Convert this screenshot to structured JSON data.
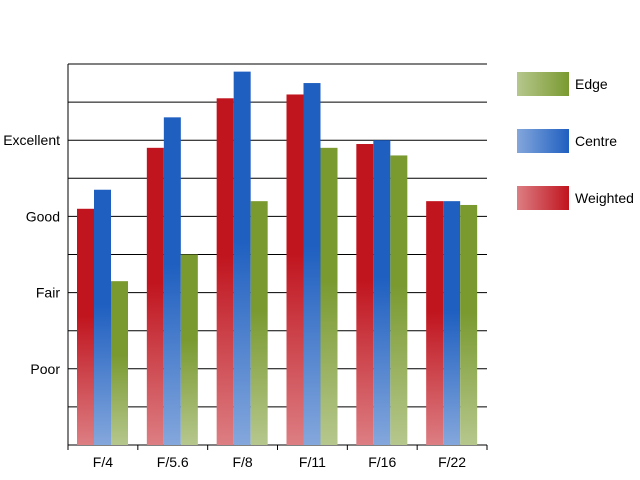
{
  "chart_data": {
    "type": "bar",
    "title": "",
    "xlabel": "",
    "ylabel": "",
    "categories": [
      "F/4",
      "F/5.6",
      "F/8",
      "F/11",
      "F/16",
      "F/22"
    ],
    "series": [
      {
        "name": "Weighted",
        "color": "#c0141e",
        "values": [
          6.2,
          7.8,
          9.1,
          9.2,
          7.9,
          6.4
        ]
      },
      {
        "name": "Centre",
        "color": "#1f5fc0",
        "values": [
          6.7,
          8.6,
          9.8,
          9.5,
          8.0,
          6.4
        ]
      },
      {
        "name": "Edge",
        "color": "#7a9a30",
        "values": [
          4.3,
          5.0,
          6.4,
          7.8,
          7.6,
          6.3
        ]
      }
    ],
    "legend_order": [
      "Edge",
      "Centre",
      "Weighted"
    ],
    "y_tick_labels": [
      {
        "label": "Poor",
        "value": 2
      },
      {
        "label": "Fair",
        "value": 4
      },
      {
        "label": "Good",
        "value": 6
      },
      {
        "label": "Excellent",
        "value": 8
      }
    ],
    "ylim": [
      0,
      10
    ],
    "grid": true,
    "legend_position": "right"
  }
}
